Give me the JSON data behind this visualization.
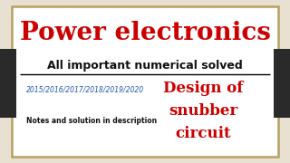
{
  "bg_color": "#e8e0d0",
  "card_bg": "#ffffff",
  "border_color": "#b8a060",
  "dark_bar_color": "#2a2a2a",
  "title": "Power electronics",
  "title_color": "#cc0000",
  "subtitle": "All important numerical solved",
  "subtitle_color": "#111111",
  "years": "2015/2016/2017/2018/2019/2020",
  "years_color": "#2255aa",
  "notes": "Notes and solution in description",
  "notes_color": "#111111",
  "design_line1": "Design of",
  "design_line2": "snubber",
  "design_line3": "circuit",
  "design_color": "#cc0000",
  "line_color": "#555555"
}
